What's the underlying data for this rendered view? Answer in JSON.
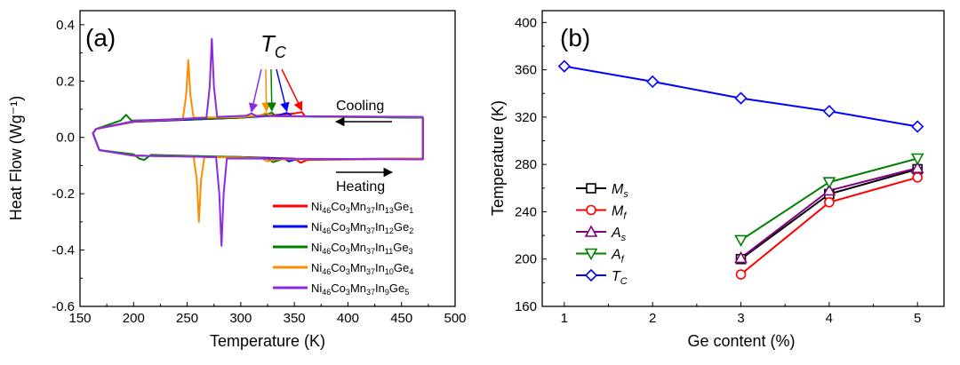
{
  "chart_data": [
    {
      "type": "line",
      "panel_label": "(a)",
      "xlabel": "Temperature (K)",
      "ylabel": "Heat Flow (Wg⁻¹)",
      "xlim": [
        150,
        500
      ],
      "ylim": [
        -0.6,
        0.45
      ],
      "xticks": [
        150,
        200,
        250,
        300,
        350,
        400,
        450,
        500
      ],
      "yticks": [
        -0.6,
        -0.4,
        -0.2,
        0.0,
        0.2,
        0.4
      ],
      "xtick_labels": [
        "150",
        "200",
        "250",
        "300",
        "350",
        "400",
        "450",
        "500"
      ],
      "ytick_labels": [
        "-0.6",
        "-0.4",
        "-0.2",
        "0.0",
        "0.2",
        "0.4"
      ],
      "annotation_tc": "T",
      "annotation_tc_sub": "C",
      "tc_arrow_targets": [
        {
          "series": "Ge5",
          "x": 310,
          "y": 0.085
        },
        {
          "series": "Ge4",
          "x": 324,
          "y": 0.087
        },
        {
          "series": "Ge3",
          "x": 329,
          "y": 0.088
        },
        {
          "series": "Ge2",
          "x": 343,
          "y": 0.087
        },
        {
          "series": "Ge1",
          "x": 357,
          "y": 0.09
        }
      ],
      "cooling_label": "Cooling",
      "heating_label": "Heating",
      "series": [
        {
          "name": "Ge1",
          "formula": [
            "Ni",
            "46",
            "Co",
            "3",
            "Mn",
            "37",
            "In",
            "13",
            "Ge",
            "1"
          ],
          "color": "#ff0000",
          "cooling": [
            [
              470,
              0.07
            ],
            [
              360,
              0.075
            ],
            [
              357,
              0.09
            ],
            [
              350,
              0.085
            ],
            [
              300,
              0.07
            ],
            [
              200,
              0.055
            ],
            [
              165,
              0.03
            ],
            [
              162,
              0.015
            ]
          ],
          "heating": [
            [
              162,
              0.015
            ],
            [
              168,
              -0.045
            ],
            [
              200,
              -0.065
            ],
            [
              300,
              -0.07
            ],
            [
              350,
              -0.075
            ],
            [
              356,
              -0.09
            ],
            [
              362,
              -0.08
            ],
            [
              470,
              -0.075
            ],
            [
              470,
              0.07
            ]
          ]
        },
        {
          "name": "Ge2",
          "formula": [
            "Ni",
            "46",
            "Co",
            "3",
            "Mn",
            "37",
            "In",
            "12",
            "Ge",
            "2"
          ],
          "color": "#0000ff",
          "cooling": [
            [
              470,
              0.07
            ],
            [
              348,
              0.075
            ],
            [
              343,
              0.087
            ],
            [
              335,
              0.078
            ],
            [
              300,
              0.07
            ],
            [
              200,
              0.056
            ],
            [
              165,
              0.03
            ],
            [
              162,
              0.015
            ]
          ],
          "heating": [
            [
              162,
              0.015
            ],
            [
              168,
              -0.045
            ],
            [
              200,
              -0.065
            ],
            [
              300,
              -0.07
            ],
            [
              340,
              -0.075
            ],
            [
              345,
              -0.085
            ],
            [
              352,
              -0.078
            ],
            [
              470,
              -0.075
            ],
            [
              470,
              0.07
            ]
          ]
        },
        {
          "name": "Ge3",
          "formula": [
            "Ni",
            "46",
            "Co",
            "3",
            "Mn",
            "37",
            "In",
            "11",
            "Ge",
            "3"
          ],
          "color": "#008000",
          "cooling": [
            [
              470,
              0.07
            ],
            [
              333,
              0.075
            ],
            [
              329,
              0.088
            ],
            [
              322,
              0.078
            ],
            [
              300,
              0.07
            ],
            [
              198,
              0.06
            ],
            [
              193,
              0.08
            ],
            [
              188,
              0.06
            ],
            [
              165,
              0.03
            ],
            [
              162,
              0.015
            ]
          ],
          "heating": [
            [
              162,
              0.015
            ],
            [
              168,
              -0.045
            ],
            [
              200,
              -0.06
            ],
            [
              205,
              -0.075
            ],
            [
              210,
              -0.08
            ],
            [
              216,
              -0.062
            ],
            [
              300,
              -0.07
            ],
            [
              325,
              -0.075
            ],
            [
              330,
              -0.088
            ],
            [
              338,
              -0.078
            ],
            [
              470,
              -0.075
            ],
            [
              470,
              0.07
            ]
          ]
        },
        {
          "name": "Ge4",
          "formula": [
            "Ni",
            "46",
            "Co",
            "3",
            "Mn",
            "37",
            "In",
            "10",
            "Ge",
            "4"
          ],
          "color": "#ff8c00",
          "cooling": [
            [
              470,
              0.072
            ],
            [
              328,
              0.076
            ],
            [
              324,
              0.087
            ],
            [
              318,
              0.078
            ],
            [
              300,
              0.072
            ],
            [
              256,
              0.07
            ],
            [
              253,
              0.15
            ],
            [
              251,
              0.275
            ],
            [
              249,
              0.15
            ],
            [
              246,
              0.065
            ],
            [
              200,
              0.057
            ],
            [
              165,
              0.03
            ],
            [
              162,
              0.015
            ]
          ],
          "heating": [
            [
              162,
              0.015
            ],
            [
              168,
              -0.045
            ],
            [
              200,
              -0.065
            ],
            [
              256,
              -0.068
            ],
            [
              259,
              -0.15
            ],
            [
              261,
              -0.3
            ],
            [
              263,
              -0.15
            ],
            [
              266,
              -0.07
            ],
            [
              300,
              -0.072
            ],
            [
              320,
              -0.075
            ],
            [
              325,
              -0.085
            ],
            [
              332,
              -0.078
            ],
            [
              470,
              -0.075
            ],
            [
              470,
              0.072
            ]
          ]
        },
        {
          "name": "Ge5",
          "formula": [
            "Ni",
            "46",
            "Co",
            "3",
            "Mn",
            "37",
            "In",
            "9",
            "Ge",
            "5"
          ],
          "color": "#8a2be2",
          "cooling": [
            [
              470,
              0.073
            ],
            [
              315,
              0.076
            ],
            [
              310,
              0.085
            ],
            [
              305,
              0.077
            ],
            [
              278,
              0.073
            ],
            [
              275,
              0.18
            ],
            [
              273,
              0.35
            ],
            [
              271,
              0.18
            ],
            [
              268,
              0.07
            ],
            [
              200,
              0.058
            ],
            [
              165,
              0.03
            ],
            [
              162,
              0.015
            ]
          ],
          "heating": [
            [
              162,
              0.015
            ],
            [
              168,
              -0.045
            ],
            [
              200,
              -0.065
            ],
            [
              277,
              -0.07
            ],
            [
              280,
              -0.2
            ],
            [
              282,
              -0.385
            ],
            [
              284,
              -0.2
            ],
            [
              287,
              -0.075
            ],
            [
              300,
              -0.075
            ],
            [
              470,
              -0.078
            ],
            [
              470,
              0.073
            ]
          ]
        }
      ]
    },
    {
      "type": "line",
      "panel_label": "(b)",
      "xlabel": "Ge content (%)",
      "ylabel": "Temperature (K)",
      "xlim": [
        0.75,
        5.3
      ],
      "ylim": [
        160,
        410
      ],
      "xticks": [
        1,
        2,
        3,
        4,
        5
      ],
      "yticks": [
        160,
        200,
        240,
        280,
        320,
        360,
        400
      ],
      "xtick_labels": [
        "1",
        "2",
        "3",
        "4",
        "5"
      ],
      "ytick_labels": [
        "160",
        "200",
        "240",
        "280",
        "320",
        "360",
        "400"
      ],
      "series": [
        {
          "name": "M",
          "sub": "s",
          "color": "#000000",
          "marker": "square",
          "x": [
            3,
            4,
            5
          ],
          "y": [
            200,
            255,
            276
          ]
        },
        {
          "name": "M",
          "sub": "f",
          "color": "#ff0000",
          "marker": "circle",
          "x": [
            3,
            4,
            5
          ],
          "y": [
            187,
            248,
            269
          ]
        },
        {
          "name": "A",
          "sub": "s",
          "color": "#800080",
          "marker": "triangle-up",
          "x": [
            3,
            4,
            5
          ],
          "y": [
            201,
            258,
            277
          ]
        },
        {
          "name": "A",
          "sub": "f",
          "color": "#008000",
          "marker": "triangle-down",
          "x": [
            3,
            4,
            5
          ],
          "y": [
            216,
            265,
            285
          ]
        },
        {
          "name": "T",
          "sub": "C",
          "color": "#0000ff",
          "marker": "diamond",
          "x": [
            1,
            2,
            3,
            4,
            5
          ],
          "y": [
            363,
            350,
            336,
            325,
            312
          ]
        }
      ]
    }
  ]
}
